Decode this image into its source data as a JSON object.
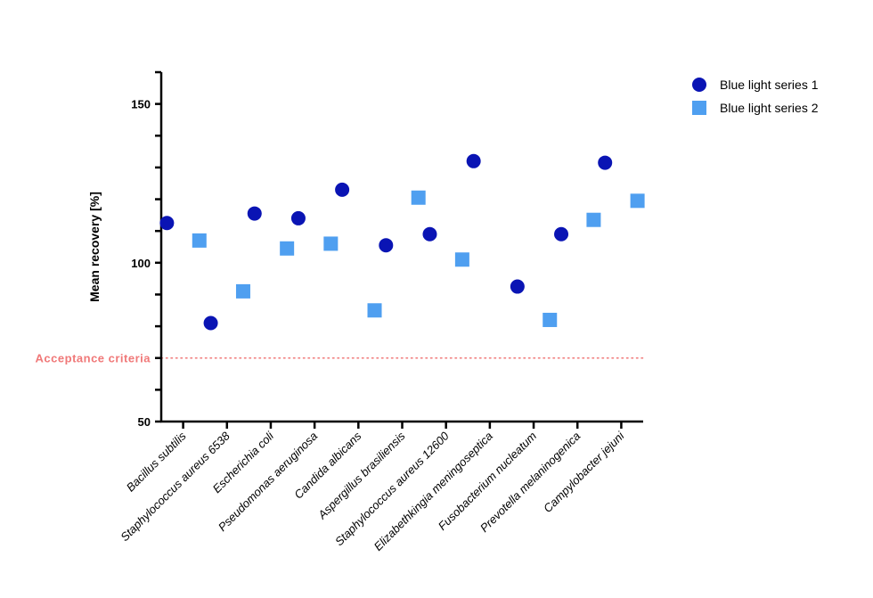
{
  "chart_data": {
    "type": "scatter",
    "ylabel": "Mean recovery  [%]",
    "xlabel": "",
    "ylim": [
      50,
      160
    ],
    "yticks_major": [
      50,
      100,
      150
    ],
    "yticks_minor_step": 10,
    "grid": false,
    "legend_position": "top-right",
    "categories": [
      "Bacillus subtilis",
      "Staphylococcus aureus 6538",
      "Escherichia coli",
      "Pseudomonas aeruginosa",
      "Candida albicans",
      "Aspergillus brasiliensis",
      "Staphylococcus aureus 12600",
      "Elizabethkingia meningoseptica",
      "Fusobacterium nucleatum",
      "Prevotella melaninogenica",
      "Campylobacter jejuni"
    ],
    "series": [
      {
        "name": "Blue light series 1",
        "marker": "circle",
        "color": "#0a14b4",
        "values": [
          112.5,
          81,
          115.5,
          114,
          123,
          105.5,
          109,
          132,
          92.5,
          109,
          131.5
        ]
      },
      {
        "name": "Blue light series 2",
        "marker": "square",
        "color": "#4f9ff0",
        "values": [
          107,
          91,
          104.5,
          106,
          85,
          120.5,
          101,
          null,
          82,
          113.5,
          119.5
        ]
      }
    ],
    "reference_line": {
      "label": "Acceptance criteria",
      "value": 70,
      "color": "#f07878",
      "style": "dotted"
    }
  }
}
